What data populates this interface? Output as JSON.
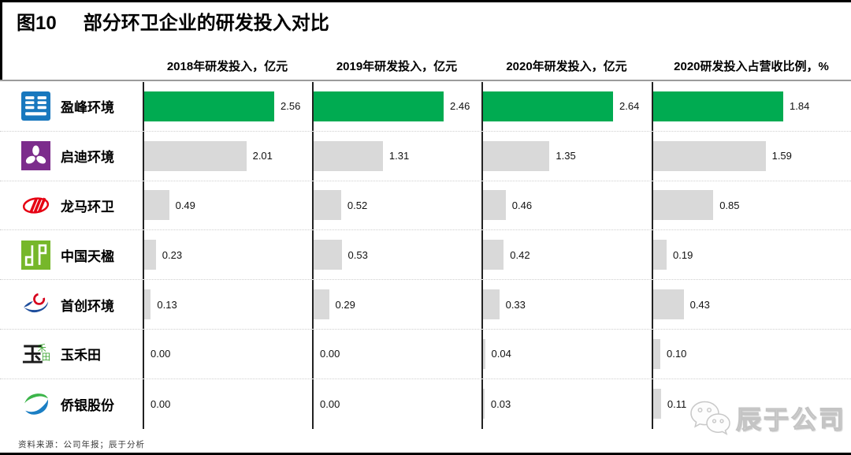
{
  "figure": {
    "tag": "图10",
    "title": "部分环卫企业的研发投入对比",
    "source": "资料来源：公司年报；辰于分析",
    "watermark": "辰于公司"
  },
  "chart_data": {
    "type": "bar",
    "orientation": "horizontal",
    "grid": false,
    "value_labels": true,
    "value_format": "2-decimals",
    "highlight_row": 0,
    "highlight_color": "#00AB51",
    "bar_color": "#D9D9D9",
    "axis_line_color": "#222222",
    "companies": [
      {
        "name": "盈峰环境",
        "logo": "yingfeng",
        "logo_color": "#1878BE"
      },
      {
        "name": "启迪环境",
        "logo": "qidi",
        "logo_color": "#7C2C8C"
      },
      {
        "name": "龙马环卫",
        "logo": "longma",
        "logo_color": "#E60012"
      },
      {
        "name": "中国天楹",
        "logo": "tianying",
        "logo_color": "#76B72A"
      },
      {
        "name": "首创环境",
        "logo": "shouchuang",
        "logo_color": "#1F4E9C"
      },
      {
        "name": "玉禾田",
        "logo": "yuhetian",
        "logo_color": "#1A1A1A"
      },
      {
        "name": "侨银股份",
        "logo": "qiaoyin",
        "logo_color": "#3CB54A"
      }
    ],
    "series": [
      {
        "name": "2018年研发投入，亿元",
        "values": [
          2.56,
          2.01,
          0.49,
          0.23,
          0.13,
          0.0,
          0.0
        ]
      },
      {
        "name": "2019年研发投入，亿元",
        "values": [
          2.46,
          1.31,
          0.52,
          0.53,
          0.29,
          0.0,
          0.0
        ]
      },
      {
        "name": "2020年研发投入，亿元",
        "values": [
          2.64,
          1.35,
          0.46,
          0.42,
          0.33,
          0.04,
          0.03
        ]
      },
      {
        "name": "2020研发投入占营收比例，%",
        "values": [
          1.84,
          1.59,
          0.85,
          0.19,
          0.43,
          0.1,
          0.11
        ]
      }
    ]
  }
}
